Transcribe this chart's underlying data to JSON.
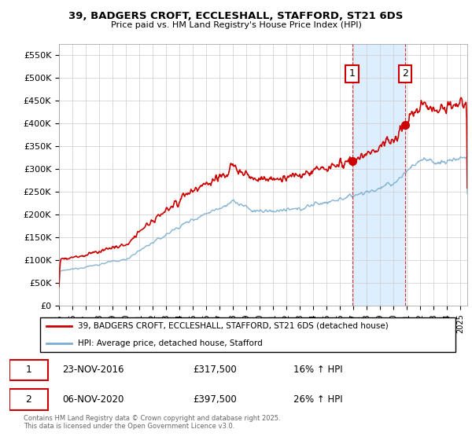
{
  "title_line1": "39, BADGERS CROFT, ECCLESHALL, STAFFORD, ST21 6DS",
  "title_line2": "Price paid vs. HM Land Registry's House Price Index (HPI)",
  "legend_label1": "39, BADGERS CROFT, ECCLESHALL, STAFFORD, ST21 6DS (detached house)",
  "legend_label2": "HPI: Average price, detached house, Stafford",
  "annotation1_date": "23-NOV-2016",
  "annotation1_price": "£317,500",
  "annotation1_hpi": "16% ↑ HPI",
  "annotation2_date": "06-NOV-2020",
  "annotation2_price": "£397,500",
  "annotation2_hpi": "26% ↑ HPI",
  "footnote": "Contains HM Land Registry data © Crown copyright and database right 2025.\nThis data is licensed under the Open Government Licence v3.0.",
  "line1_color": "#cc0000",
  "line2_color": "#7aadcf",
  "shade_color": "#ddeeff",
  "vline_color": "#cc0000",
  "background_color": "#ffffff",
  "ylim": [
    0,
    575000
  ],
  "yticks": [
    0,
    50000,
    100000,
    150000,
    200000,
    250000,
    300000,
    350000,
    400000,
    450000,
    500000,
    550000
  ],
  "sale1_year": 2016.9,
  "sale1_price": 317500,
  "sale2_year": 2020.85,
  "sale2_price": 397500,
  "xlim_start": 1995,
  "xlim_end": 2025.5
}
